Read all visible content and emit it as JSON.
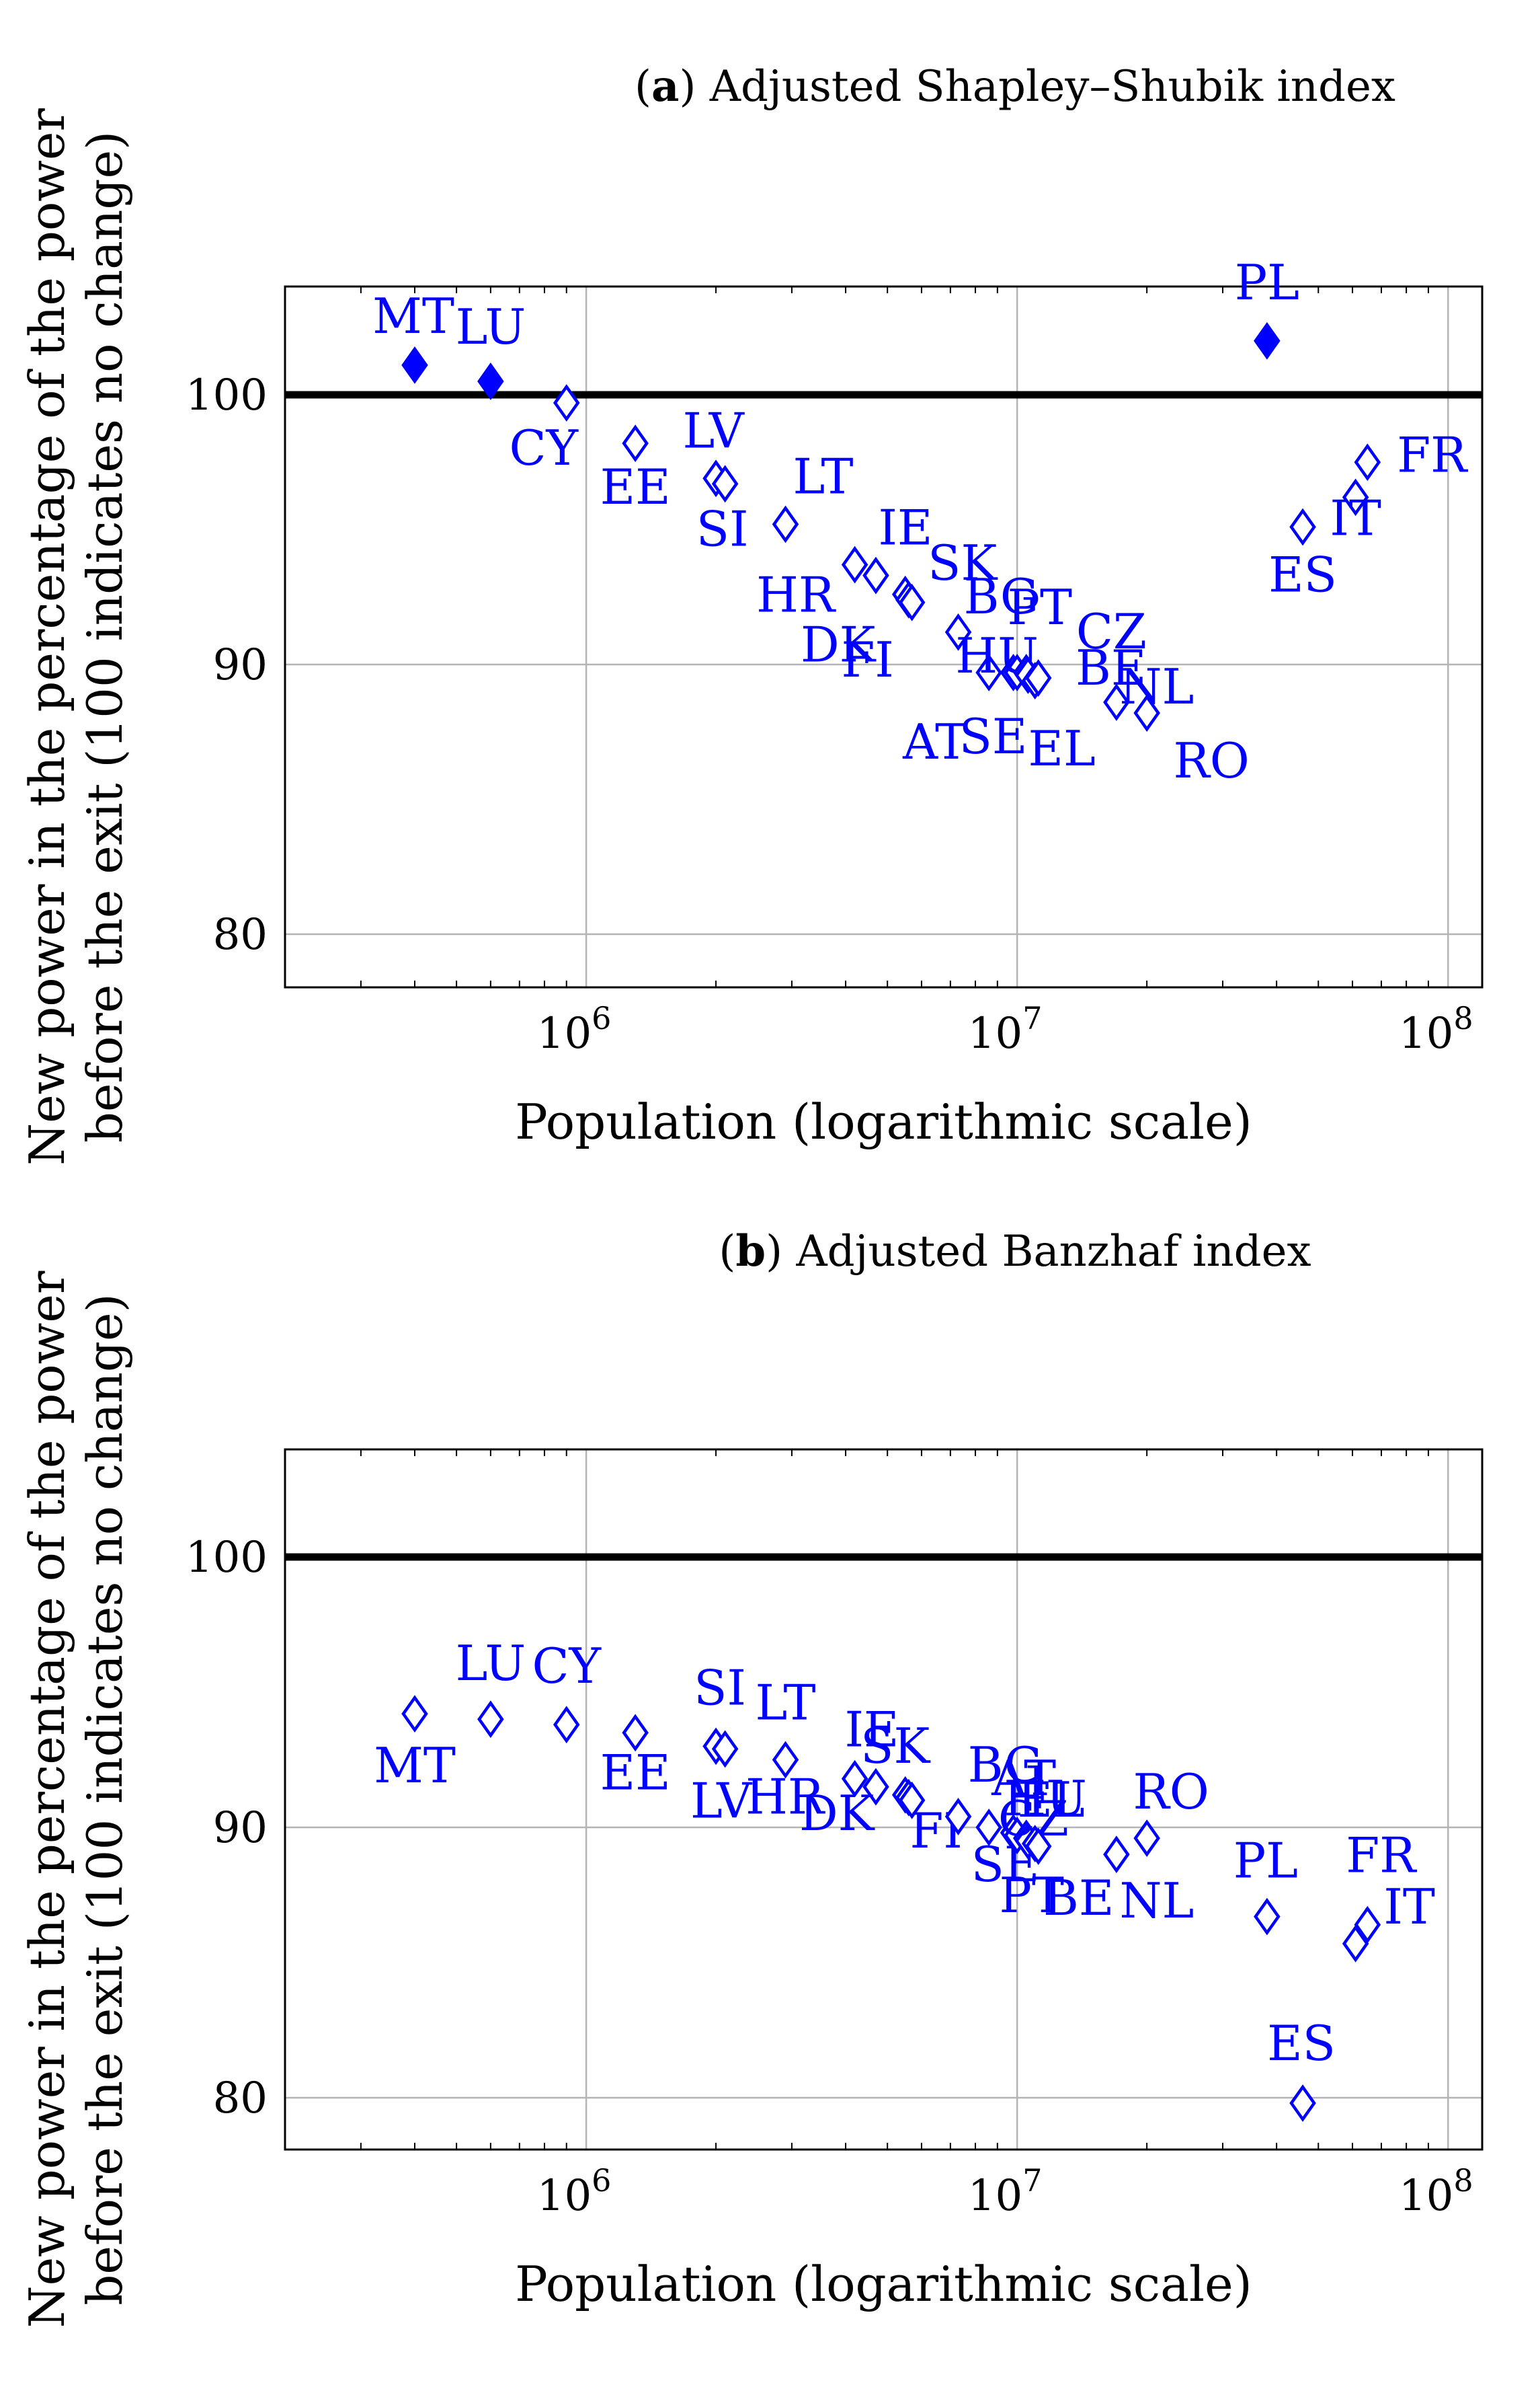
{
  "colors": {
    "series": "#0000ff",
    "reference": "#000000",
    "grid": "#b4b4b4",
    "frame": "#000000"
  },
  "chart_data": [
    {
      "type": "scatter",
      "panel": "a",
      "title": "Adjusted Shapley–Shubik index",
      "title_key": "(a)",
      "xlabel": "Population (logarithmic scale)",
      "ylabel": [
        "New power in the percentage of the power",
        "before the exit (100 indicates no change)"
      ],
      "xscale": "log",
      "xlim": [
        200000,
        120000000
      ],
      "ylim": [
        78,
        104
      ],
      "yticks": [
        80,
        90,
        100
      ],
      "xticks": [
        {
          "base": "10",
          "exp": "6",
          "value": 1000000
        },
        {
          "base": "10",
          "exp": "7",
          "value": 10000000
        },
        {
          "base": "10",
          "exp": "8",
          "value": 100000000
        }
      ],
      "reference_line": 100,
      "grid": true,
      "points": [
        {
          "label": "MT",
          "x": 400000,
          "y": 101.1,
          "filled": true
        },
        {
          "label": "LU",
          "x": 600000,
          "y": 100.5,
          "filled": true
        },
        {
          "label": "CY",
          "x": 900000,
          "y": 99.7,
          "filled": false
        },
        {
          "label": "EE",
          "x": 1300000,
          "y": 98.2,
          "filled": false
        },
        {
          "label": "LV",
          "x": 2000000,
          "y": 96.9,
          "filled": false
        },
        {
          "label": "SI",
          "x": 2100000,
          "y": 96.7,
          "filled": false
        },
        {
          "label": "LT",
          "x": 2900000,
          "y": 95.2,
          "filled": false
        },
        {
          "label": "HR",
          "x": 4200000,
          "y": 93.7,
          "filled": false
        },
        {
          "label": "IE",
          "x": 4700000,
          "y": 93.3,
          "filled": false
        },
        {
          "label": "DK",
          "x": 5500000,
          "y": 92.6,
          "filled": false
        },
        {
          "label": "SK",
          "x": 5600000,
          "y": 92.4,
          "filled": false
        },
        {
          "label": "FI",
          "x": 5700000,
          "y": 92.3,
          "filled": false
        },
        {
          "label": "BG",
          "x": 7300000,
          "y": 91.2,
          "filled": false
        },
        {
          "label": "AT",
          "x": 8600000,
          "y": 89.7,
          "filled": false
        },
        {
          "label": "SE",
          "x": 9800000,
          "y": 89.7,
          "filled": false
        },
        {
          "label": "HU",
          "x": 10000000,
          "y": 89.7,
          "filled": false
        },
        {
          "label": "PT",
          "x": 10500000,
          "y": 89.7,
          "filled": false
        },
        {
          "label": "CZ",
          "x": 10600000,
          "y": 89.6,
          "filled": false
        },
        {
          "label": "EL",
          "x": 11000000,
          "y": 89.4,
          "filled": false
        },
        {
          "label": "BE",
          "x": 11200000,
          "y": 89.5,
          "filled": false
        },
        {
          "label": "NL",
          "x": 17000000,
          "y": 88.6,
          "filled": false
        },
        {
          "label": "RO",
          "x": 20000000,
          "y": 88.2,
          "filled": false
        },
        {
          "label": "PL",
          "x": 38000000,
          "y": 102.0,
          "filled": true
        },
        {
          "label": "ES",
          "x": 46000000,
          "y": 95.1,
          "filled": false
        },
        {
          "label": "IT",
          "x": 61000000,
          "y": 96.2,
          "filled": false
        },
        {
          "label": "FR",
          "x": 65000000,
          "y": 97.5,
          "filled": false
        }
      ]
    },
    {
      "type": "scatter",
      "panel": "b",
      "title": "Adjusted Banzhaf index",
      "title_key": "(b)",
      "xlabel": "Population (logarithmic scale)",
      "ylabel": [
        "New power in the percentage of the power",
        "before the exit (100 indicates no change)"
      ],
      "xscale": "log",
      "xlim": [
        200000,
        120000000
      ],
      "ylim": [
        78,
        104
      ],
      "yticks": [
        80,
        90,
        100
      ],
      "xticks": [
        {
          "base": "10",
          "exp": "6",
          "value": 1000000
        },
        {
          "base": "10",
          "exp": "7",
          "value": 10000000
        },
        {
          "base": "10",
          "exp": "8",
          "value": 100000000
        }
      ],
      "reference_line": 100,
      "grid": true,
      "points": [
        {
          "label": "MT",
          "x": 400000,
          "y": 94.2,
          "filled": false
        },
        {
          "label": "LU",
          "x": 600000,
          "y": 94.0,
          "filled": false
        },
        {
          "label": "CY",
          "x": 900000,
          "y": 93.8,
          "filled": false
        },
        {
          "label": "EE",
          "x": 1300000,
          "y": 93.5,
          "filled": false
        },
        {
          "label": "SI",
          "x": 2000000,
          "y": 93.0,
          "filled": false
        },
        {
          "label": "LV",
          "x": 2100000,
          "y": 92.9,
          "filled": false
        },
        {
          "label": "LT",
          "x": 2900000,
          "y": 92.5,
          "filled": false
        },
        {
          "label": "HR",
          "x": 4200000,
          "y": 91.8,
          "filled": false
        },
        {
          "label": "IE",
          "x": 4700000,
          "y": 91.5,
          "filled": false
        },
        {
          "label": "DK",
          "x": 5500000,
          "y": 91.2,
          "filled": false
        },
        {
          "label": "SK",
          "x": 5600000,
          "y": 91.1,
          "filled": false
        },
        {
          "label": "FI",
          "x": 5700000,
          "y": 91.0,
          "filled": false
        },
        {
          "label": "BG",
          "x": 7300000,
          "y": 90.4,
          "filled": false
        },
        {
          "label": "AT",
          "x": 8600000,
          "y": 90.0,
          "filled": false
        },
        {
          "label": "SE",
          "x": 9800000,
          "y": 89.8,
          "filled": false
        },
        {
          "label": "HU",
          "x": 10000000,
          "y": 89.7,
          "filled": false
        },
        {
          "label": "PT",
          "x": 10500000,
          "y": 89.6,
          "filled": false
        },
        {
          "label": "CZ",
          "x": 10600000,
          "y": 89.5,
          "filled": false
        },
        {
          "label": "EL",
          "x": 11000000,
          "y": 89.4,
          "filled": false
        },
        {
          "label": "BE",
          "x": 11200000,
          "y": 89.3,
          "filled": false
        },
        {
          "label": "NL",
          "x": 17000000,
          "y": 89.0,
          "filled": false
        },
        {
          "label": "RO",
          "x": 20000000,
          "y": 89.6,
          "filled": false
        },
        {
          "label": "PL",
          "x": 38000000,
          "y": 86.7,
          "filled": false
        },
        {
          "label": "ES",
          "x": 46000000,
          "y": 79.8,
          "filled": false
        },
        {
          "label": "IT",
          "x": 61000000,
          "y": 85.7,
          "filled": false
        },
        {
          "label": "FR",
          "x": 65000000,
          "y": 86.4,
          "filled": false
        }
      ]
    }
  ]
}
